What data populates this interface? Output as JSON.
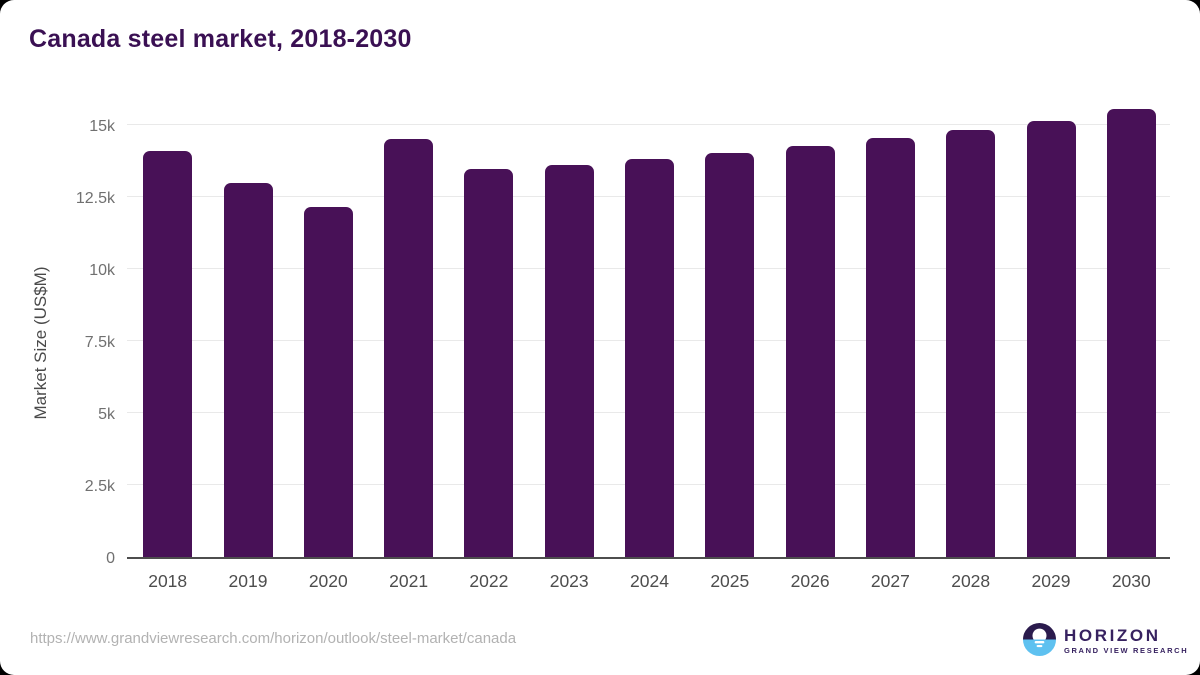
{
  "title": "Canada steel market, 2018-2030",
  "source_url": "https://www.grandviewresearch.com/horizon/outlook/steel-market/canada",
  "logo": {
    "name": "HORIZON",
    "tagline": "GRAND VIEW RESEARCH"
  },
  "colors": {
    "bar": "#481157",
    "title": "#3a1053",
    "y_tick_label": "#707070",
    "x_tick_label": "#4d4d4d",
    "gridline": "#e9e9e9",
    "axis_line": "#4d4d4d",
    "url_text": "#b2b2b2",
    "logo_purple": "#2b1b4d",
    "logo_blue": "#5ec1f0"
  },
  "chart_data": {
    "type": "bar",
    "title": "Canada steel market, 2018-2030",
    "xlabel": "",
    "ylabel": "Market Size (US$M)",
    "categories": [
      "2018",
      "2019",
      "2020",
      "2021",
      "2022",
      "2023",
      "2024",
      "2025",
      "2026",
      "2027",
      "2028",
      "2029",
      "2030"
    ],
    "values": [
      14100,
      12990,
      12170,
      14520,
      13480,
      13600,
      13830,
      14030,
      14270,
      14540,
      14840,
      15150,
      15560
    ],
    "ylim": [
      0,
      15600
    ],
    "yticks": [
      {
        "value": 0,
        "label": "0"
      },
      {
        "value": 2500,
        "label": "2.5k"
      },
      {
        "value": 5000,
        "label": "5k"
      },
      {
        "value": 7500,
        "label": "7.5k"
      },
      {
        "value": 10000,
        "label": "10k"
      },
      {
        "value": 12500,
        "label": "12.5k"
      },
      {
        "value": 15000,
        "label": "15k"
      }
    ],
    "grid": true,
    "legend": false,
    "bar_unit": "US$M"
  }
}
